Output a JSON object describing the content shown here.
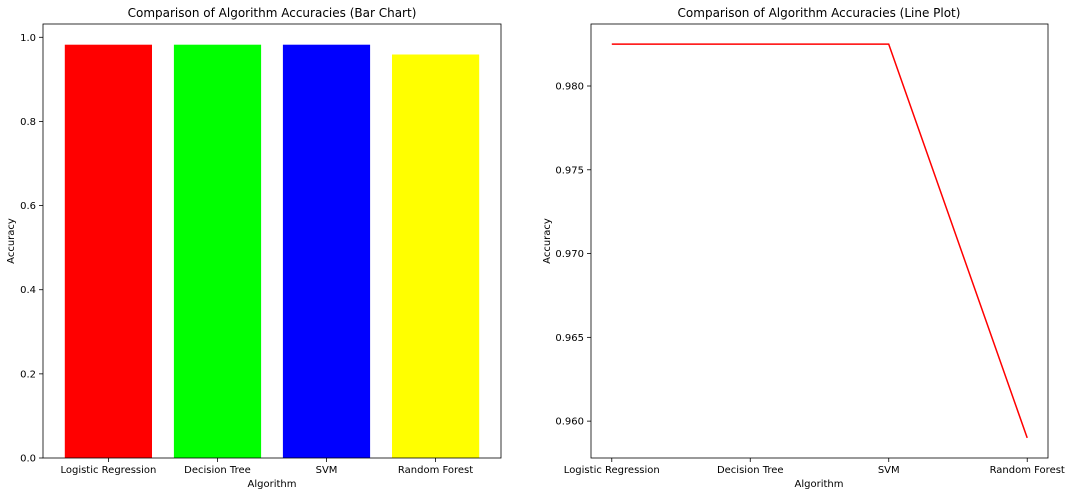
{
  "chart_data": [
    {
      "type": "bar",
      "title": "Comparison of Algorithm Accuracies (Bar Chart)",
      "xlabel": "Algorithm",
      "ylabel": "Accuracy",
      "categories": [
        "Logistic Regression",
        "Decision Tree",
        "SVM",
        "Random Forest"
      ],
      "values": [
        0.9825,
        0.9825,
        0.9825,
        0.959
      ],
      "colors": [
        "#ff0000",
        "#00ff00",
        "#0000ff",
        "#ffff00"
      ],
      "ylim": [
        0,
        1.0316
      ],
      "yticks": [
        0.0,
        0.2,
        0.4,
        0.6,
        0.8,
        1.0
      ],
      "ytick_labels": [
        "0.0",
        "0.2",
        "0.4",
        "0.6",
        "0.8",
        "1.0"
      ],
      "grid": false
    },
    {
      "type": "line",
      "title": "Comparison of Algorithm Accuracies (Line Plot)",
      "xlabel": "Algorithm",
      "ylabel": "Accuracy",
      "categories": [
        "Logistic Regression",
        "Decision Tree",
        "SVM",
        "Random Forest"
      ],
      "values": [
        0.9825,
        0.9825,
        0.9825,
        0.959
      ],
      "line_color": "#ff0000",
      "ylim": [
        0.9578,
        0.9837
      ],
      "yticks": [
        0.96,
        0.965,
        0.97,
        0.975,
        0.98
      ],
      "ytick_labels": [
        "0.960",
        "0.965",
        "0.970",
        "0.975",
        "0.980"
      ],
      "grid": false
    }
  ]
}
